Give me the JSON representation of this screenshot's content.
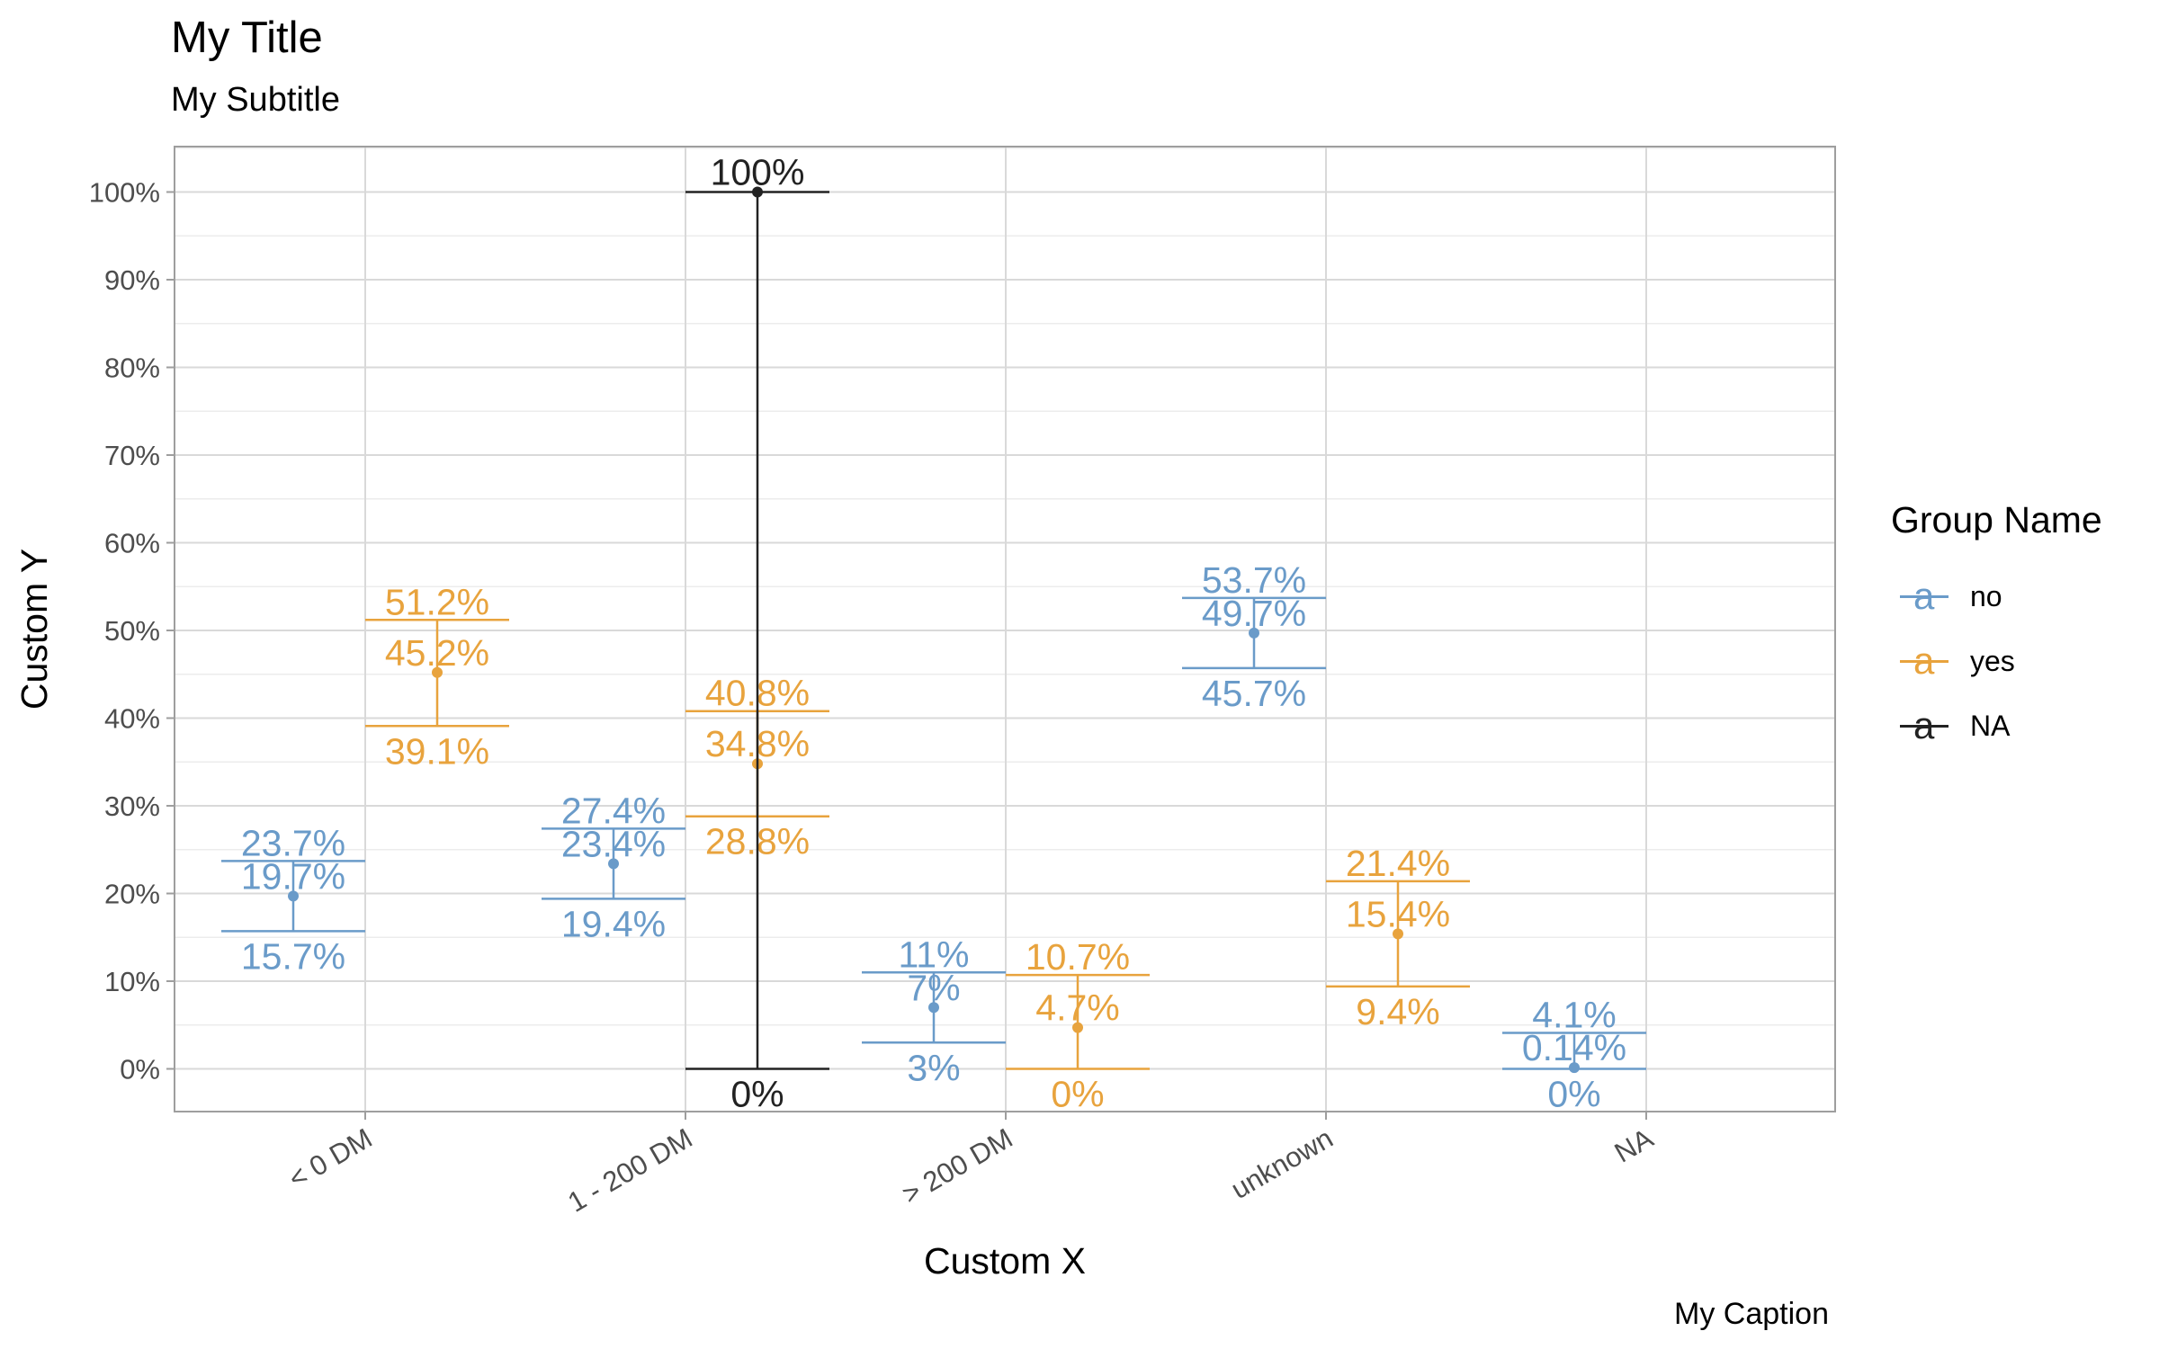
{
  "title": "My Title",
  "subtitle": "My Subtitle",
  "caption": "My Caption",
  "legend": {
    "title": "Group Name",
    "items": [
      {
        "label": "no",
        "color": "#6A9BC9",
        "glyph": "a"
      },
      {
        "label": "yes",
        "color": "#E8A33D",
        "glyph": "a"
      },
      {
        "label": "NA",
        "color": "#222222",
        "glyph": "a"
      }
    ]
  },
  "chart_data": {
    "type": "errorbar",
    "xlabel": "Custom X",
    "ylabel": "Custom Y",
    "categories": [
      "< 0 DM",
      "1 - 200 DM",
      "> 200 DM",
      "unknown",
      "NA"
    ],
    "ylim": [
      -5,
      105
    ],
    "yticks": [
      0,
      10,
      20,
      30,
      40,
      50,
      60,
      70,
      80,
      90,
      100
    ],
    "ytick_labels": [
      "0%",
      "10%",
      "20%",
      "30%",
      "40%",
      "50%",
      "60%",
      "70%",
      "80%",
      "90%",
      "100%"
    ],
    "grid": true,
    "legend_position": "right",
    "series": [
      {
        "name": "no",
        "color": "#6A9BC9",
        "points": [
          {
            "category": "< 0 DM",
            "value": 19.7,
            "low": 15.7,
            "high": 23.7,
            "label": "19.7%",
            "low_label": "15.7%",
            "high_label": "23.7%"
          },
          {
            "category": "1 - 200 DM",
            "value": 23.4,
            "low": 19.4,
            "high": 27.4,
            "label": "23.4%",
            "low_label": "19.4%",
            "high_label": "27.4%"
          },
          {
            "category": "> 200 DM",
            "value": 7,
            "low": 3,
            "high": 11,
            "label": "7%",
            "low_label": "3%",
            "high_label": "11%"
          },
          {
            "category": "unknown",
            "value": 49.7,
            "low": 45.7,
            "high": 53.7,
            "label": "49.7%",
            "low_label": "45.7%",
            "high_label": "53.7%"
          },
          {
            "category": "NA",
            "value": 0.14,
            "low": 0,
            "high": 4.1,
            "label": "0.14%",
            "low_label": "0%",
            "high_label": "4.1%"
          }
        ]
      },
      {
        "name": "yes",
        "color": "#E8A33D",
        "points": [
          {
            "category": "< 0 DM",
            "value": 45.2,
            "low": 39.1,
            "high": 51.2,
            "label": "45.2%",
            "low_label": "39.1%",
            "high_label": "51.2%"
          },
          {
            "category": "1 - 200 DM",
            "value": 34.8,
            "low": 28.8,
            "high": 40.8,
            "label": "34.8%",
            "low_label": "28.8%",
            "high_label": "40.8%"
          },
          {
            "category": "> 200 DM",
            "value": 4.7,
            "low": 0,
            "high": 10.7,
            "label": "4.7%",
            "low_label": "0%",
            "high_label": "10.7%"
          },
          {
            "category": "unknown",
            "value": 15.4,
            "low": 9.4,
            "high": 21.4,
            "label": "15.4%",
            "low_label": "9.4%",
            "high_label": "21.4%"
          }
        ]
      },
      {
        "name": "NA",
        "color": "#222222",
        "points": [
          {
            "category": "1 - 200 DM",
            "value": 100,
            "low": 0,
            "high": 100,
            "label": "100%",
            "low_label": "0%",
            "high_label": ""
          }
        ]
      }
    ]
  }
}
